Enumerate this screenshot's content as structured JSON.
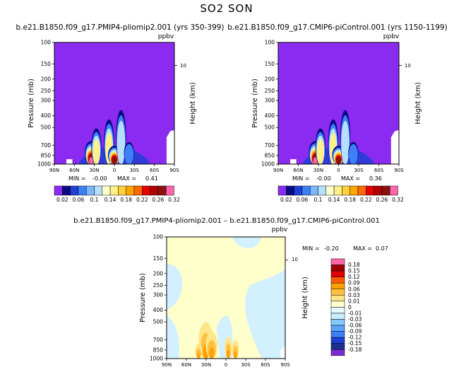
{
  "page": {
    "title": "SO2 SON",
    "panel_titles": [
      "b.e21.B1850.f09_g17.PMIP4-pliomip2.001 (yrs 350-399)",
      "b.e21.B1850.f09_g17.CMIP6-piControl.001 (yrs 1150-1199)",
      "b.e21.B1850.f09_g17.PMIP4-pliomip2.001 – b.e21.B1850.f09_g17.CMIP6-piControl.001"
    ],
    "unit": "ppbv",
    "left_axis_label": "Pressure (mb)",
    "right_axis_label": "Height (km)",
    "height_tick": "10",
    "min_label": "MIN =",
    "max_label": "MAX ="
  },
  "colors": {
    "abs_bg": "#8B2BF2",
    "diff_bg": "#FFFFCC",
    "abs_levels": [
      "#8B2BF2",
      "#0A0A87",
      "#1E3FD6",
      "#3D7FF5",
      "#7AB8FF",
      "#B8DEFF",
      "#FFFFCC",
      "#FFF08A",
      "#FFD23C",
      "#FFA500",
      "#FF6A00",
      "#E80000",
      "#B00000",
      "#8C1010",
      "#FF66AA"
    ],
    "diff_levels": [
      "#7B2BD2",
      "#1C2F8E",
      "#1E3FD6",
      "#3D7FF5",
      "#5AA6FF",
      "#86C8FF",
      "#C6EEFF",
      "#E6F8FF",
      "#FFFFCC",
      "#FFE68A",
      "#FFC040",
      "#FF9F00",
      "#FF5A00",
      "#E00000",
      "#9C0000",
      "#FF66AA"
    ]
  },
  "chart_data": [
    {
      "type": "heatmap",
      "title": "b.e21.B1850.f09_g17.PMIP4-pliomip2.001 (yrs 350-399)",
      "ylabel": "Pressure (mb)",
      "ylabel_right": "Height (km)",
      "unit": "ppbv",
      "x_ticks": [
        "90N",
        "60N",
        "30N",
        "0",
        "30S",
        "60S",
        "90S"
      ],
      "y_ticks": [
        "100",
        "150",
        "200",
        "250",
        "300",
        "400",
        "500",
        "700",
        "850",
        "1000"
      ],
      "y_log": true,
      "min": "-0.00",
      "max": "0.41",
      "colorbar_labels": [
        "0.02",
        "0.06",
        "0.1",
        "0.14",
        "0.18",
        "0.22",
        "0.26",
        "0.32"
      ],
      "plumes": [
        {
          "lat": 35,
          "top": 640,
          "val": 0.41
        },
        {
          "lat": 27,
          "top": 500,
          "val": 0.14
        },
        {
          "lat": 8,
          "top": 420,
          "val": 0.14
        },
        {
          "lat": 0,
          "top": 700,
          "val": 0.3
        },
        {
          "lat": -10,
          "top": 350,
          "val": 0.1
        },
        {
          "lat": -22,
          "top": 650,
          "val": 0.06
        }
      ]
    },
    {
      "type": "heatmap",
      "title": "b.e21.B1850.f09_g17.CMIP6-piControl.001 (yrs 1150-1199)",
      "ylabel": "Pressure (mb)",
      "ylabel_right": "Height (km)",
      "unit": "ppbv",
      "x_ticks": [
        "90N",
        "60N",
        "30N",
        "0",
        "30S",
        "60S",
        "90S"
      ],
      "y_ticks": [
        "100",
        "150",
        "200",
        "250",
        "300",
        "400",
        "500",
        "700",
        "850",
        "1000"
      ],
      "y_log": true,
      "min": "-0.00",
      "max": "0.36",
      "colorbar_labels": [
        "0.02",
        "0.06",
        "0.1",
        "0.14",
        "0.18",
        "0.22",
        "0.26",
        "0.32"
      ],
      "plumes": [
        {
          "lat": 35,
          "top": 640,
          "val": 0.36
        },
        {
          "lat": 27,
          "top": 500,
          "val": 0.14
        },
        {
          "lat": 8,
          "top": 420,
          "val": 0.14
        },
        {
          "lat": 0,
          "top": 700,
          "val": 0.28
        },
        {
          "lat": -10,
          "top": 350,
          "val": 0.1
        },
        {
          "lat": -22,
          "top": 650,
          "val": 0.06
        }
      ]
    },
    {
      "type": "heatmap",
      "title": "b.e21.B1850.f09_g17.PMIP4-pliomip2.001 – b.e21.B1850.f09_g17.CMIP6-piControl.001",
      "ylabel": "Pressure (mb)",
      "ylabel_right": "Height (km)",
      "unit": "ppbv",
      "x_ticks": [
        "90N",
        "60N",
        "30N",
        "0",
        "30S",
        "60S",
        "90S"
      ],
      "y_ticks": [
        "100",
        "150",
        "200",
        "250",
        "300",
        "400",
        "500",
        "700",
        "850",
        "1000"
      ],
      "y_log": true,
      "min": "-0.20",
      "max": "0.07",
      "colorbar_labels": [
        "0.18",
        "0.15",
        "0.12",
        "0.09",
        "0.06",
        "0.03",
        "0.01",
        "0",
        "-0.01",
        "-0.03",
        "-0.06",
        "-0.09",
        "-0.12",
        "-0.15",
        "-0.18"
      ]
    }
  ]
}
